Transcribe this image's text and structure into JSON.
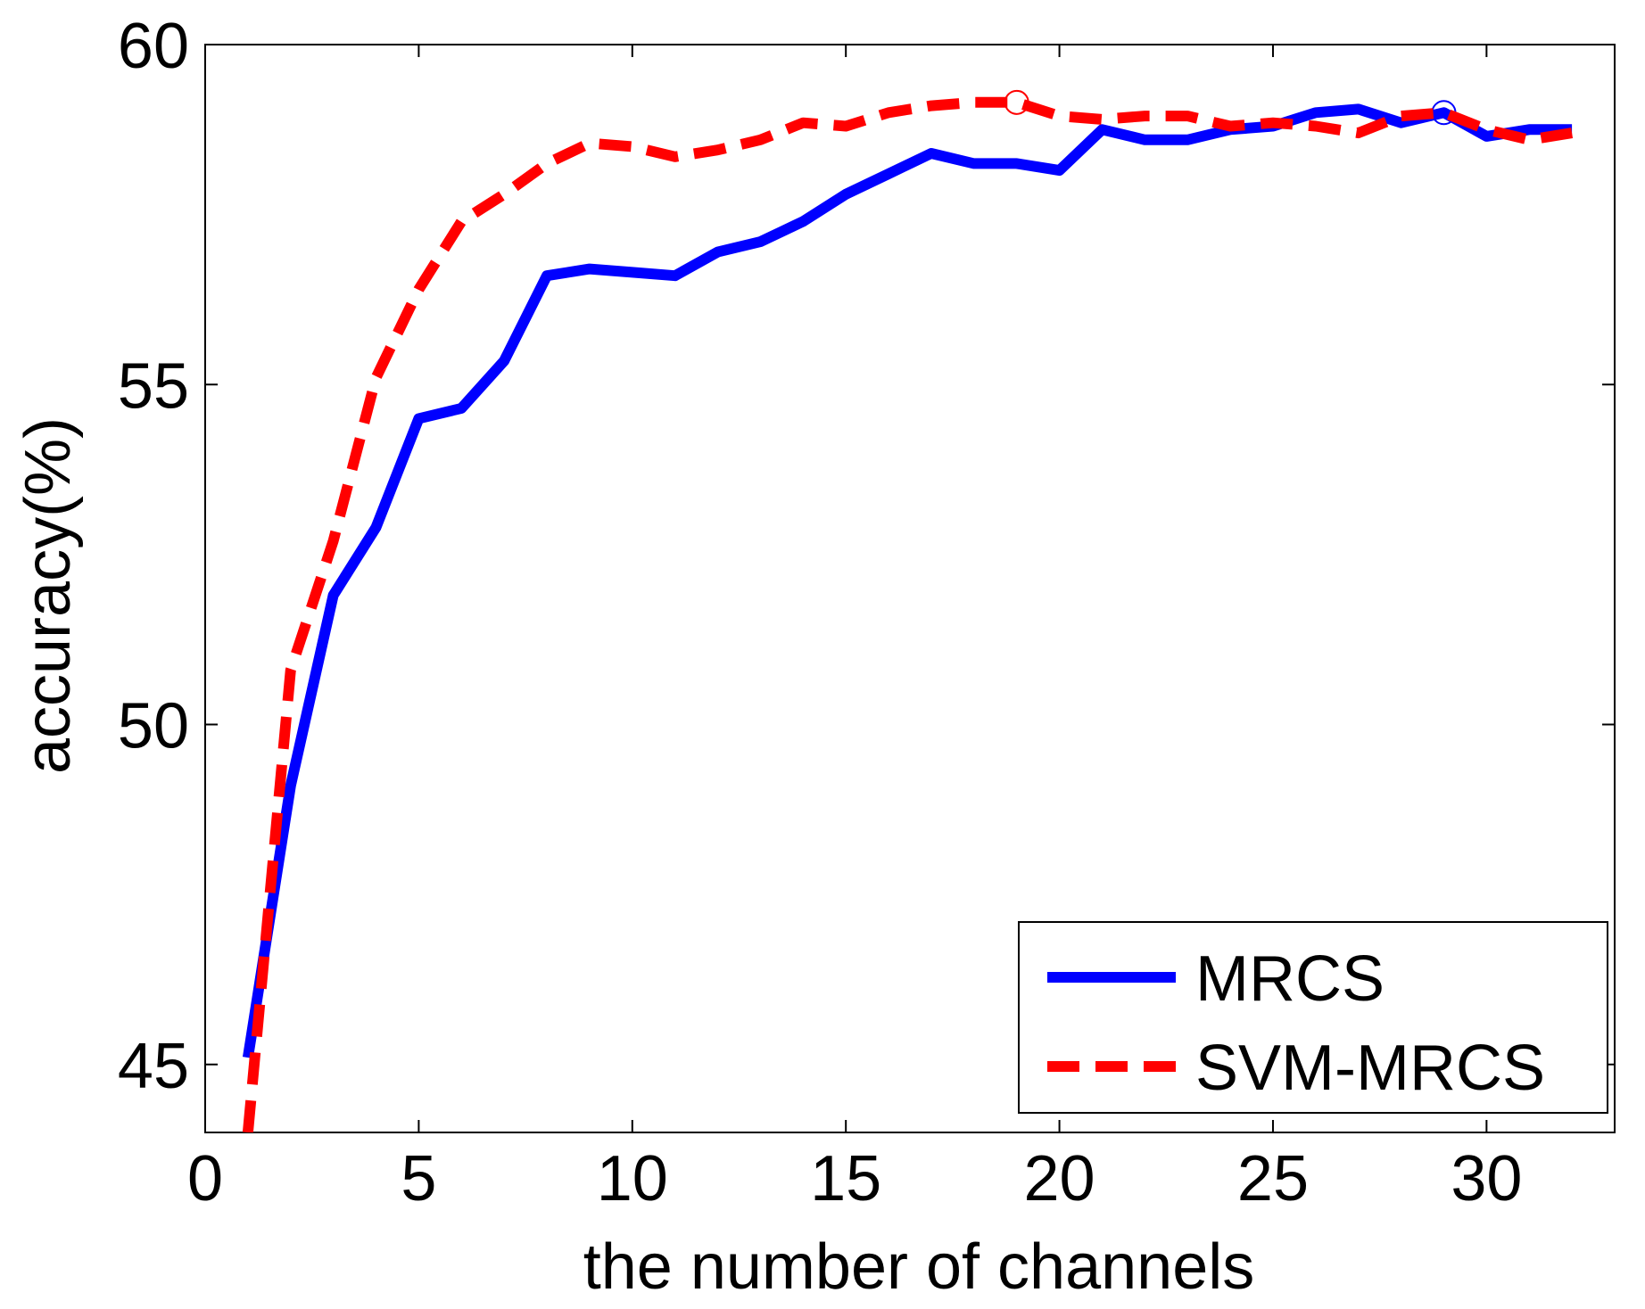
{
  "chart_data": {
    "type": "line",
    "title": "",
    "xlabel": "the number of channels",
    "ylabel": "accuracy(%)",
    "xlim": [
      0,
      33
    ],
    "ylim": [
      44,
      60
    ],
    "xticks": [
      0,
      5,
      10,
      15,
      20,
      25,
      30
    ],
    "yticks": [
      45,
      50,
      55,
      60
    ],
    "xtick_labels": [
      "0",
      "5",
      "10",
      "15",
      "20",
      "25",
      "30"
    ],
    "ytick_labels": [
      "45",
      "50",
      "55",
      "60"
    ],
    "grid": false,
    "legend_position": "bottom-right",
    "x": [
      1,
      2,
      3,
      4,
      5,
      6,
      7,
      8,
      9,
      10,
      11,
      12,
      13,
      14,
      15,
      16,
      17,
      18,
      19,
      20,
      21,
      22,
      23,
      24,
      25,
      26,
      27,
      28,
      29,
      30,
      31,
      32
    ],
    "series": [
      {
        "name": "MRCS",
        "color": "#0000ff",
        "style": "solid",
        "values": [
          45.1,
          49.1,
          51.9,
          52.9,
          54.5,
          54.65,
          55.35,
          56.6,
          56.7,
          56.65,
          56.6,
          56.95,
          57.1,
          57.4,
          57.8,
          58.1,
          58.4,
          58.25,
          58.25,
          58.15,
          58.75,
          58.6,
          58.6,
          58.75,
          58.8,
          59.0,
          59.05,
          58.85,
          59.0,
          58.65,
          58.75,
          58.75
        ],
        "marker": {
          "x": 29,
          "y": 59.0
        }
      },
      {
        "name": "SVM-MRCS",
        "color": "#ff0000",
        "style": "dashed",
        "values": [
          44.0,
          50.8,
          52.7,
          55.1,
          56.4,
          57.4,
          57.8,
          58.25,
          58.55,
          58.5,
          58.35,
          58.45,
          58.6,
          58.85,
          58.8,
          59.0,
          59.1,
          59.15,
          59.15,
          58.95,
          58.9,
          58.95,
          58.95,
          58.8,
          58.85,
          58.8,
          58.7,
          58.95,
          59.0,
          58.75,
          58.6,
          58.7
        ],
        "marker": {
          "x": 19,
          "y": 59.15
        }
      }
    ]
  }
}
